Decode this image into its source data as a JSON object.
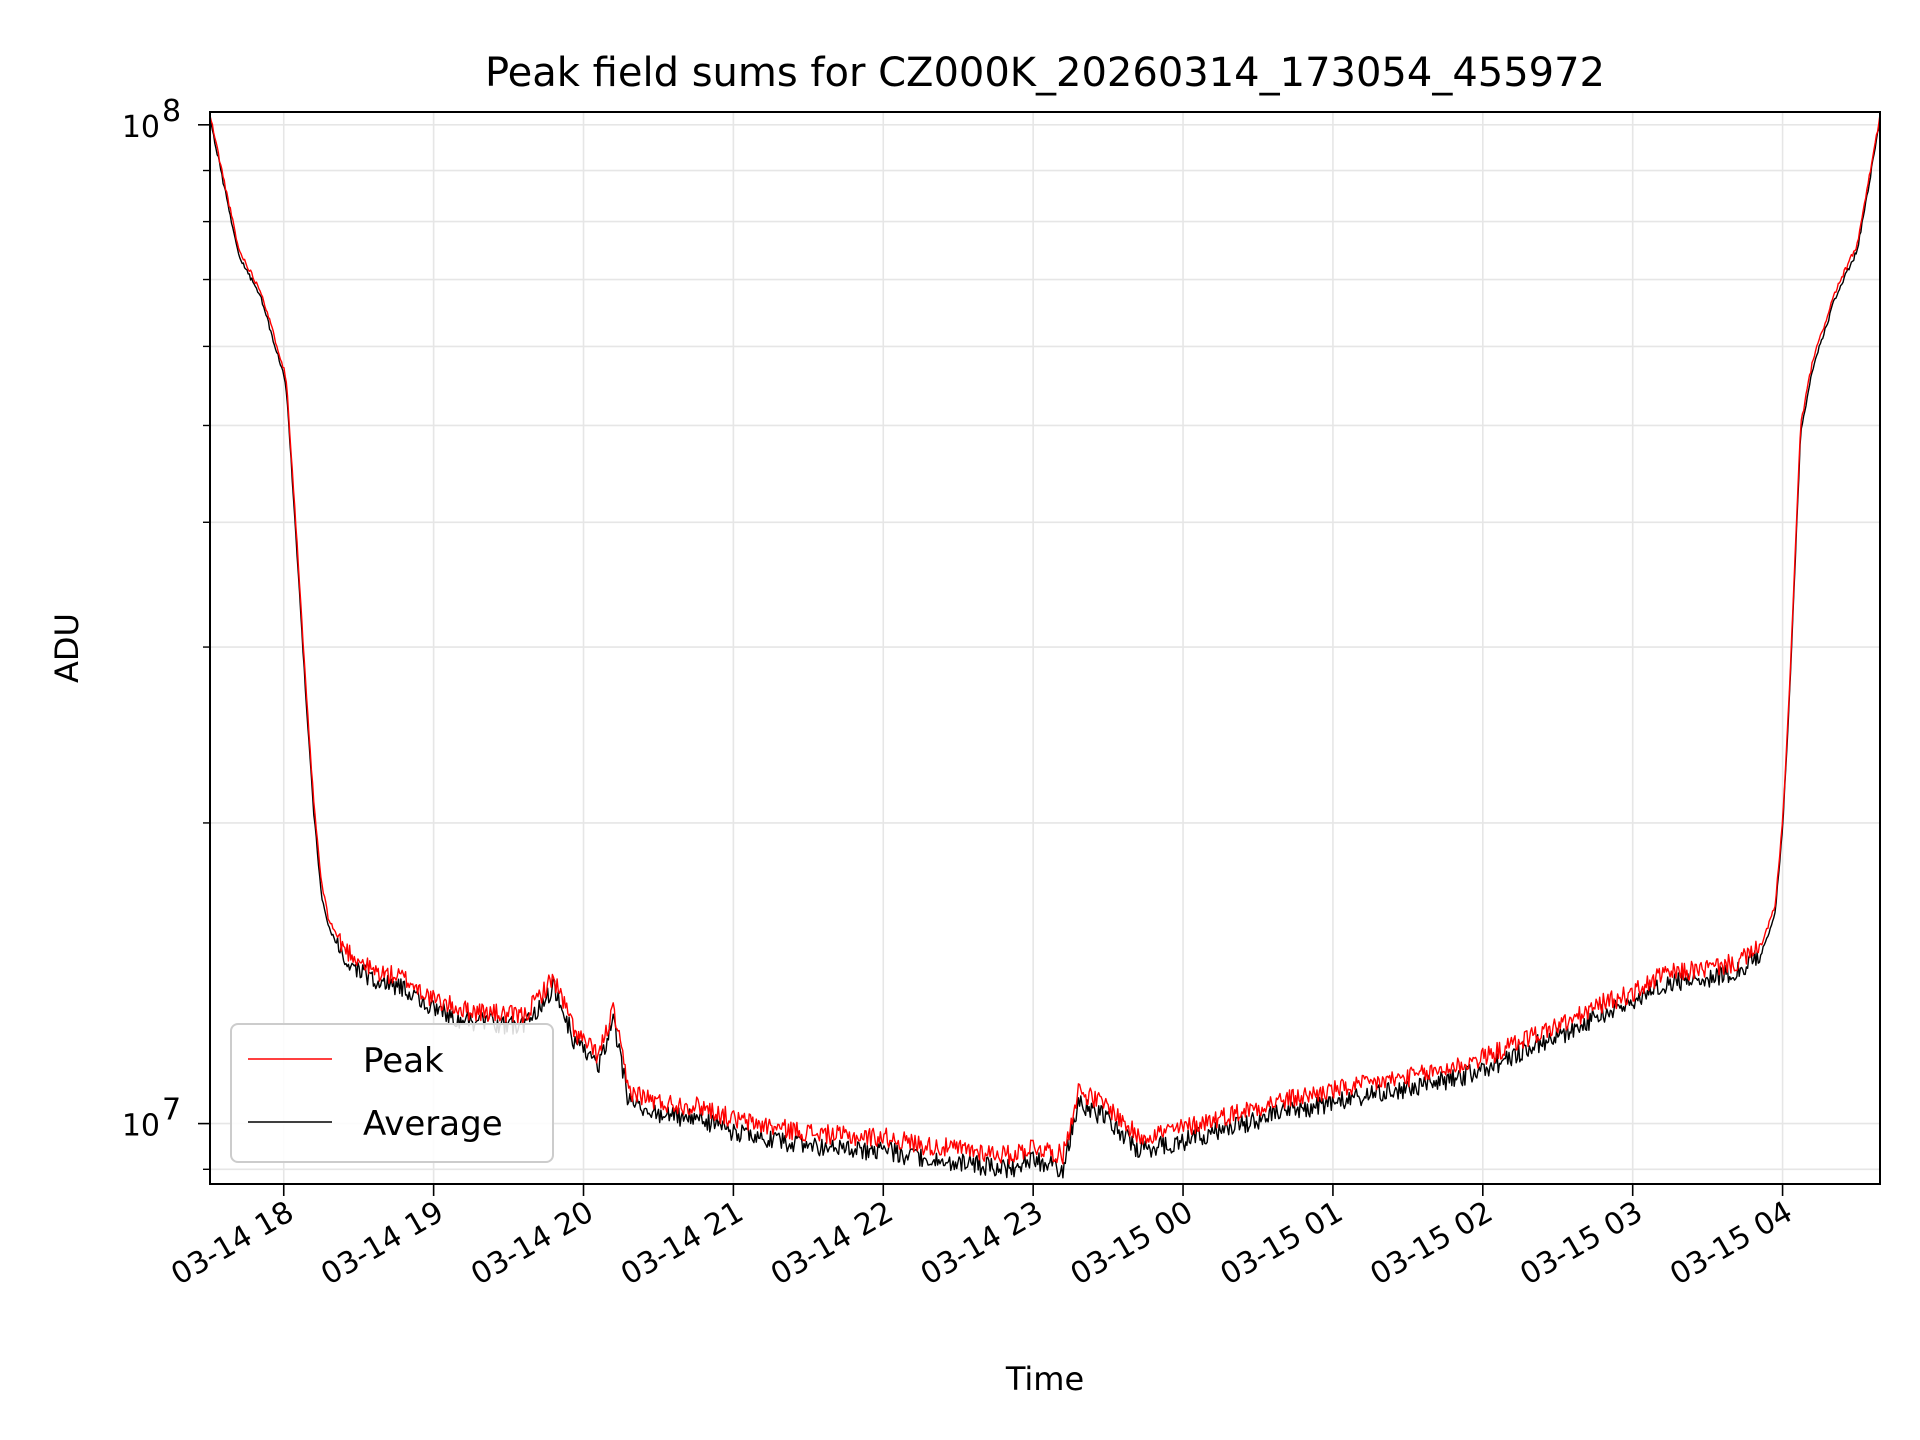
{
  "chart_data": {
    "type": "line",
    "title": "Peak field sums for CZ000K_20260314_173054_455972",
    "xlabel": "Time",
    "ylabel": "ADU",
    "y_scale": "log",
    "ylim": [
      8700000,
      103000000
    ],
    "xlim_hours": [
      17.508,
      28.65
    ],
    "grid": true,
    "legend_position": "lower-left",
    "x_ticks": [
      {
        "label": "03-14 18",
        "hour": 18
      },
      {
        "label": "03-14 19",
        "hour": 19
      },
      {
        "label": "03-14 20",
        "hour": 20
      },
      {
        "label": "03-14 21",
        "hour": 21
      },
      {
        "label": "03-14 22",
        "hour": 22
      },
      {
        "label": "03-14 23",
        "hour": 23
      },
      {
        "label": "03-15 00",
        "hour": 24
      },
      {
        "label": "03-15 01",
        "hour": 25
      },
      {
        "label": "03-15 02",
        "hour": 26
      },
      {
        "label": "03-15 03",
        "hour": 27
      },
      {
        "label": "03-15 04",
        "hour": 28
      }
    ],
    "y_major_ticks": [
      {
        "value": 10000000,
        "base": "10",
        "exp": "7"
      },
      {
        "value": 100000000,
        "base": "10",
        "exp": "8"
      }
    ],
    "y_minor_ticks": [
      9000000,
      20000000,
      30000000,
      40000000,
      50000000,
      60000000,
      70000000,
      80000000,
      90000000
    ],
    "hour_points": [
      17.51,
      17.7,
      17.85,
      18.0,
      18.02,
      18.08,
      18.15,
      18.2,
      18.25,
      18.3,
      18.4,
      18.6,
      18.8,
      19.0,
      19.2,
      19.4,
      19.6,
      19.8,
      19.95,
      20.1,
      20.2,
      20.3,
      20.5,
      20.8,
      21.0,
      21.3,
      21.5,
      21.8,
      22.0,
      22.3,
      22.6,
      22.85,
      23.0,
      23.2,
      23.3,
      23.5,
      23.7,
      24.0,
      24.3,
      24.6,
      25.0,
      25.3,
      25.6,
      25.9,
      26.1,
      26.3,
      26.6,
      26.8,
      27.0,
      27.2,
      27.5,
      27.7,
      27.85,
      27.95,
      28.0,
      28.05,
      28.12,
      28.2,
      28.35,
      28.5,
      28.65
    ],
    "series": [
      {
        "name": "Peak",
        "color": "#ff0000",
        "values": [
          102000000,
          75000000,
          68000000,
          57000000,
          55000000,
          40000000,
          27000000,
          21000000,
          17500000,
          16000000,
          15000000,
          14200000,
          14000000,
          13300000,
          13000000,
          12900000,
          12800000,
          14000000,
          12300000,
          11700000,
          13000000,
          10800000,
          10500000,
          10400000,
          10100000,
          9900000,
          9800000,
          9700000,
          9700000,
          9500000,
          9400000,
          9300000,
          9500000,
          9300000,
          10800000,
          10400000,
          9700000,
          9900000,
          10200000,
          10500000,
          10800000,
          11000000,
          11200000,
          11500000,
          11800000,
          12200000,
          12700000,
          13200000,
          13500000,
          14100000,
          14300000,
          14500000,
          15000000,
          16500000,
          20000000,
          28000000,
          50000000,
          58000000,
          68000000,
          76000000,
          102000000
        ]
      },
      {
        "name": "Average",
        "color": "#000000",
        "values": [
          101000000,
          74000000,
          67000000,
          56000000,
          54000000,
          39000000,
          26500000,
          20500000,
          17000000,
          15700000,
          14600000,
          13900000,
          13700000,
          13000000,
          12700000,
          12600000,
          12500000,
          13700000,
          12000000,
          11400000,
          12700000,
          10500000,
          10200000,
          10100000,
          9800000,
          9600000,
          9500000,
          9400000,
          9400000,
          9200000,
          9100000,
          9000000,
          9200000,
          9000000,
          10500000,
          10100000,
          9400000,
          9600000,
          9900000,
          10200000,
          10500000,
          10700000,
          10900000,
          11200000,
          11500000,
          11900000,
          12400000,
          12900000,
          13200000,
          13800000,
          14000000,
          14200000,
          14700000,
          16200000,
          19700000,
          27500000,
          49000000,
          57000000,
          67000000,
          75000000,
          101000000
        ]
      }
    ]
  }
}
